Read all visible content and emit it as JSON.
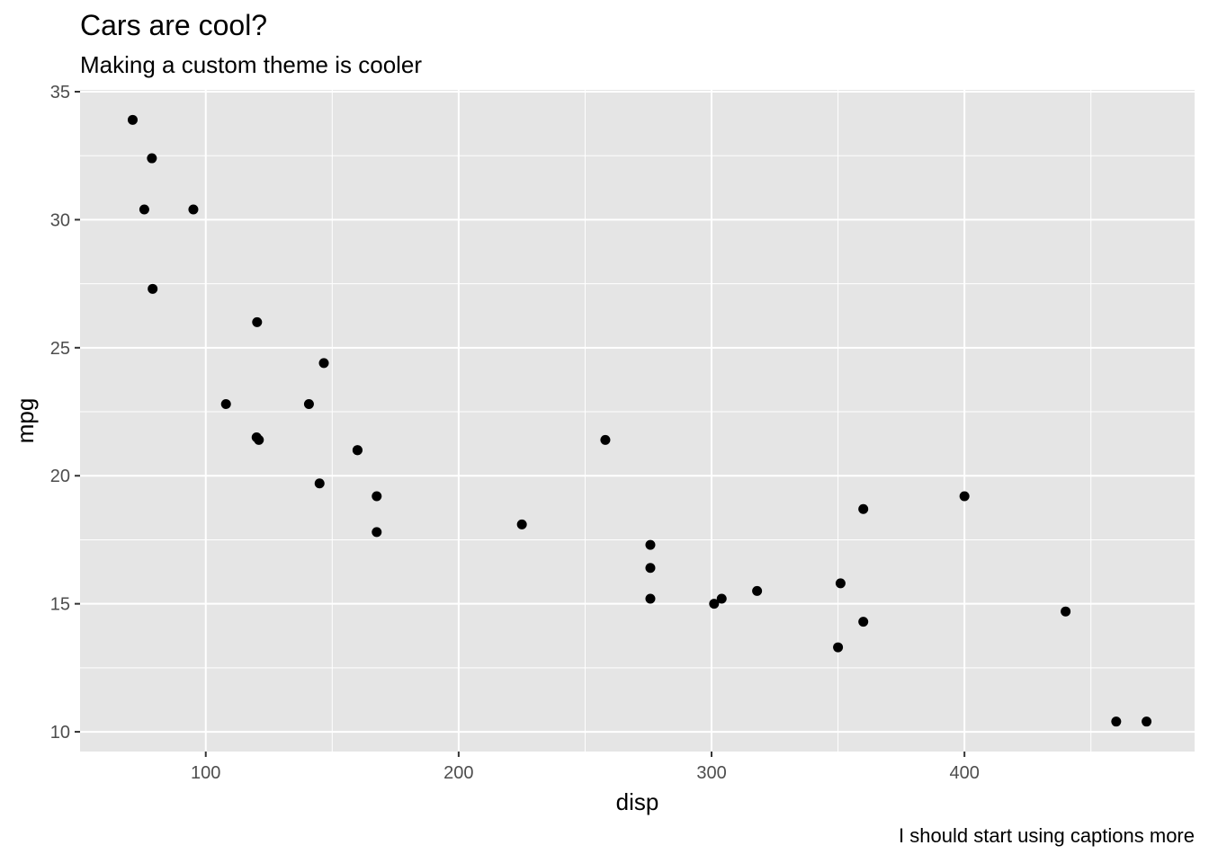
{
  "chart_data": {
    "type": "scatter",
    "title": "Cars are cool?",
    "subtitle": "Making a custom theme is cooler",
    "caption": "I should start using captions more",
    "xlabel": "disp",
    "ylabel": "mpg",
    "xlim": [
      50.3,
      491.0
    ],
    "ylim": [
      9.23,
      35.07
    ],
    "x_ticks": [
      100,
      200,
      300,
      400
    ],
    "y_ticks": [
      10,
      15,
      20,
      25,
      30,
      35
    ],
    "grid": true,
    "legend": "none",
    "point_color": "#000000",
    "panel_color": "#e5e5e5",
    "grid_color": "#ffffff",
    "points": [
      {
        "x": 160.0,
        "y": 21.0
      },
      {
        "x": 160.0,
        "y": 21.0
      },
      {
        "x": 108.0,
        "y": 22.8
      },
      {
        "x": 258.0,
        "y": 21.4
      },
      {
        "x": 360.0,
        "y": 18.7
      },
      {
        "x": 225.0,
        "y": 18.1
      },
      {
        "x": 360.0,
        "y": 14.3
      },
      {
        "x": 146.7,
        "y": 24.4
      },
      {
        "x": 140.8,
        "y": 22.8
      },
      {
        "x": 167.6,
        "y": 19.2
      },
      {
        "x": 167.6,
        "y": 17.8
      },
      {
        "x": 275.8,
        "y": 16.4
      },
      {
        "x": 275.8,
        "y": 17.3
      },
      {
        "x": 275.8,
        "y": 15.2
      },
      {
        "x": 472.0,
        "y": 10.4
      },
      {
        "x": 460.0,
        "y": 10.4
      },
      {
        "x": 440.0,
        "y": 14.7
      },
      {
        "x": 78.7,
        "y": 32.4
      },
      {
        "x": 75.7,
        "y": 30.4
      },
      {
        "x": 71.1,
        "y": 33.9
      },
      {
        "x": 120.1,
        "y": 21.5
      },
      {
        "x": 318.0,
        "y": 15.5
      },
      {
        "x": 304.0,
        "y": 15.2
      },
      {
        "x": 350.0,
        "y": 13.3
      },
      {
        "x": 400.0,
        "y": 19.2
      },
      {
        "x": 79.0,
        "y": 27.3
      },
      {
        "x": 120.3,
        "y": 26.0
      },
      {
        "x": 95.1,
        "y": 30.4
      },
      {
        "x": 351.0,
        "y": 15.8
      },
      {
        "x": 145.0,
        "y": 19.7
      },
      {
        "x": 301.0,
        "y": 15.0
      },
      {
        "x": 121.0,
        "y": 21.4
      }
    ]
  }
}
